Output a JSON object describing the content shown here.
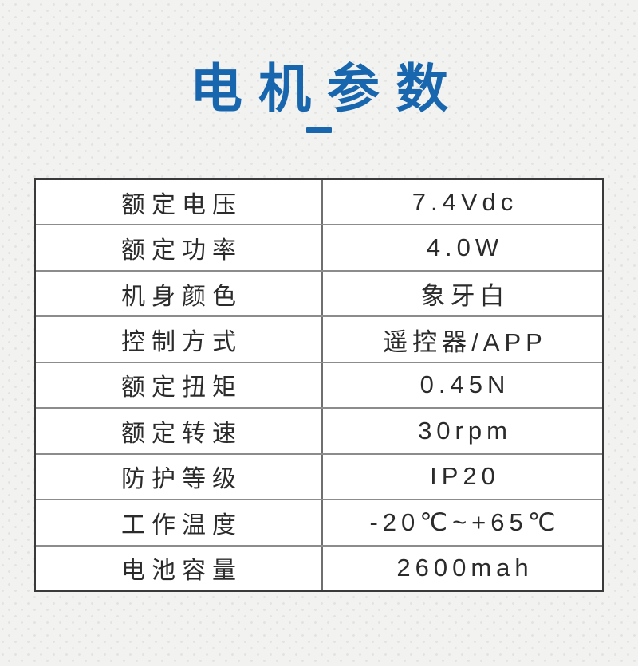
{
  "page": {
    "title": "电机参数",
    "accent_color": "#1766ae"
  },
  "table": {
    "rows": [
      {
        "label": "额定电压",
        "value": "7.4Vdc"
      },
      {
        "label": "额定功率",
        "value": "4.0W"
      },
      {
        "label": "机身颜色",
        "value": "象牙白"
      },
      {
        "label": "控制方式",
        "value": "遥控器/APP"
      },
      {
        "label": "额定扭矩",
        "value": "0.45N"
      },
      {
        "label": "额定转速",
        "value": "30rpm"
      },
      {
        "label": "防护等级",
        "value": "IP20"
      },
      {
        "label": "工作温度",
        "value": "-20℃~+65℃"
      },
      {
        "label": "电池容量",
        "value": "2600mah"
      }
    ]
  }
}
